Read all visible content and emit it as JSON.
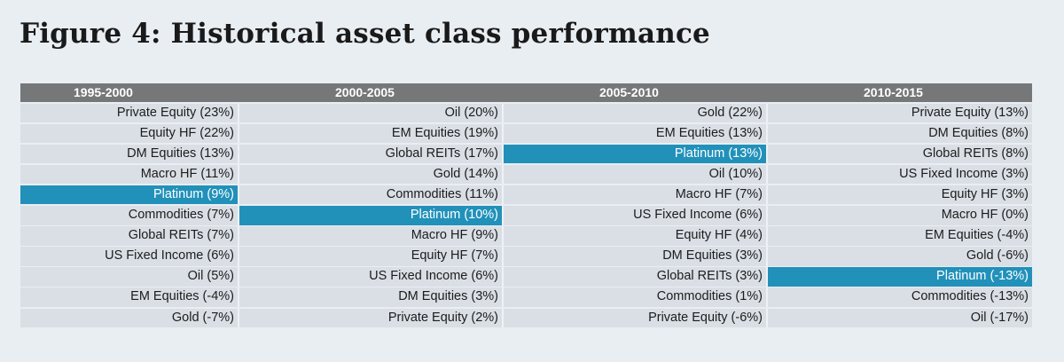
{
  "title": "Figure 4: Historical asset class performance",
  "colors": {
    "header_bg": "#757779",
    "cell_bg": "#d9dfe5",
    "highlight": "#2191ba",
    "page_bg": "#e9eef3"
  },
  "chart_data": {
    "type": "table",
    "title": "Figure 4: Historical asset class performance",
    "highlight_asset": "Platinum",
    "columns": [
      {
        "period": "1995-2000",
        "rows": [
          {
            "asset": "Private Equity",
            "value": 23
          },
          {
            "asset": "Equity HF",
            "value": 22
          },
          {
            "asset": "DM Equities",
            "value": 13
          },
          {
            "asset": "Macro HF",
            "value": 11
          },
          {
            "asset": "Platinum",
            "value": 9
          },
          {
            "asset": "Commodities",
            "value": 7
          },
          {
            "asset": "Global REITs",
            "value": 7
          },
          {
            "asset": "US Fixed Income",
            "value": 6
          },
          {
            "asset": "Oil",
            "value": 5
          },
          {
            "asset": "EM Equities",
            "value": -4
          },
          {
            "asset": "Gold",
            "value": -7
          }
        ]
      },
      {
        "period": "2000-2005",
        "rows": [
          {
            "asset": "Oil",
            "value": 20
          },
          {
            "asset": "EM Equities",
            "value": 19
          },
          {
            "asset": "Global REITs",
            "value": 17
          },
          {
            "asset": "Gold",
            "value": 14
          },
          {
            "asset": "Commodities",
            "value": 11
          },
          {
            "asset": "Platinum",
            "value": 10
          },
          {
            "asset": "Macro HF",
            "value": 9
          },
          {
            "asset": "Equity HF",
            "value": 7
          },
          {
            "asset": "US Fixed Income",
            "value": 6
          },
          {
            "asset": "DM Equities",
            "value": 3
          },
          {
            "asset": "Private Equity",
            "value": 2
          }
        ]
      },
      {
        "period": "2005-2010",
        "rows": [
          {
            "asset": "Gold",
            "value": 22
          },
          {
            "asset": "EM Equities",
            "value": 13
          },
          {
            "asset": "Platinum",
            "value": 13
          },
          {
            "asset": "Oil",
            "value": 10
          },
          {
            "asset": "Macro HF",
            "value": 7
          },
          {
            "asset": "US Fixed Income",
            "value": 6
          },
          {
            "asset": "Equity HF",
            "value": 4
          },
          {
            "asset": "DM Equities",
            "value": 3
          },
          {
            "asset": "Global REITs",
            "value": 3
          },
          {
            "asset": "Commodities",
            "value": 1
          },
          {
            "asset": "Private Equity",
            "value": -6
          }
        ]
      },
      {
        "period": "2010-2015",
        "rows": [
          {
            "asset": "Private Equity",
            "value": 13
          },
          {
            "asset": "DM Equities",
            "value": 8
          },
          {
            "asset": "Global REITs",
            "value": 8
          },
          {
            "asset": "US Fixed Income",
            "value": 3
          },
          {
            "asset": "Equity HF",
            "value": 3
          },
          {
            "asset": "Macro HF",
            "value": 0
          },
          {
            "asset": "EM Equities",
            "value": -4
          },
          {
            "asset": "Gold",
            "value": -6
          },
          {
            "asset": "Platinum",
            "value": -13
          },
          {
            "asset": "Commodities",
            "value": -13
          },
          {
            "asset": "Oil",
            "value": -17
          }
        ]
      }
    ]
  }
}
